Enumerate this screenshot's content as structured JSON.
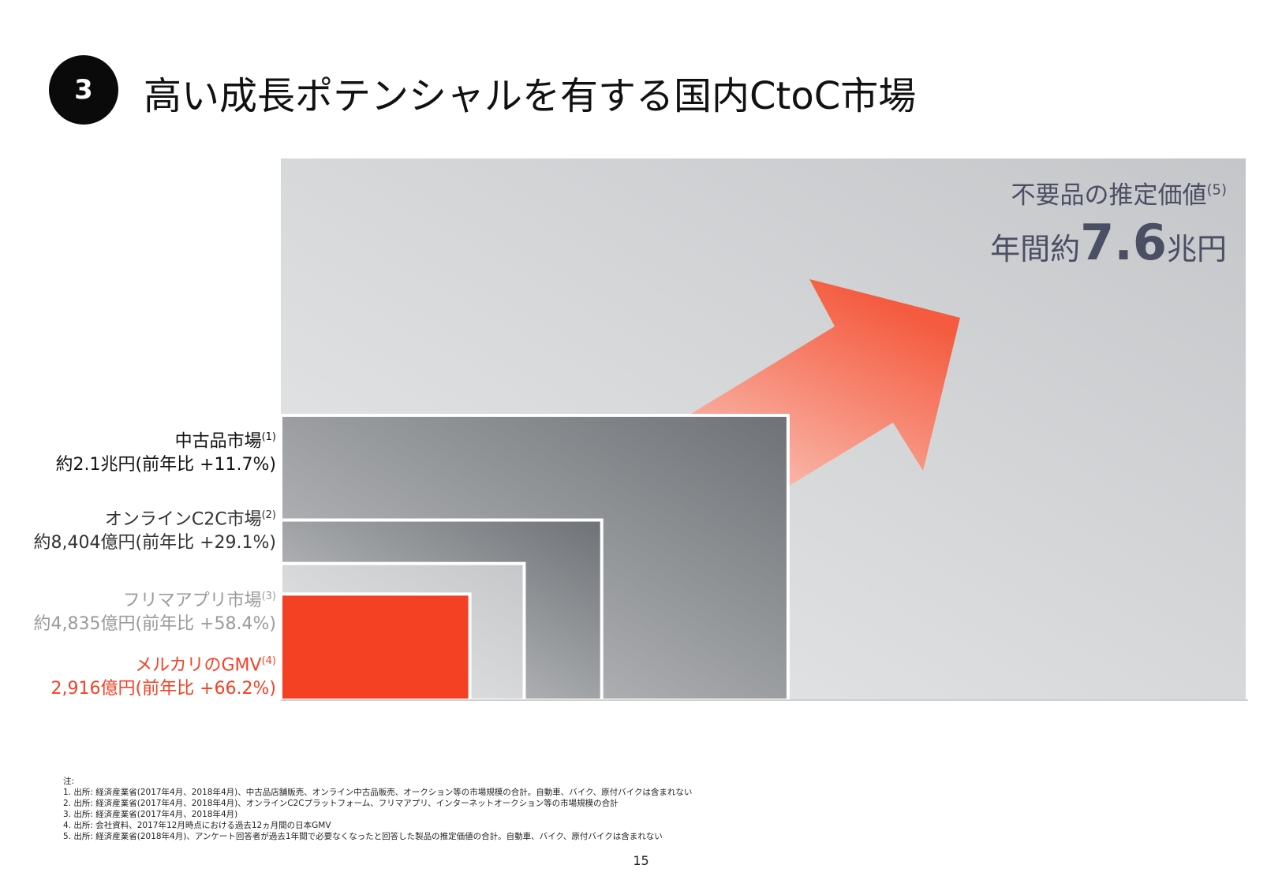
{
  "header": {
    "section_number": "3",
    "title": "高い成長ポテンシャルを有する国内CtoC市場"
  },
  "callout": {
    "label": "不要品の推定価値",
    "label_note": "(5)",
    "value_prefix": "年間約",
    "value_number": "7.6",
    "value_unit": "兆円"
  },
  "colors": {
    "accent_red": "#f44124",
    "label_gray": "#9a9a9a",
    "callout_text": "#4b4f63",
    "background_box": "#cfd1d4"
  },
  "chart_data": {
    "type": "nested-area",
    "unit": "円",
    "series": [
      {
        "name": "不要品の推定価値",
        "value_oku_yen": 76000,
        "text": "年間約7.6兆円"
      },
      {
        "name": "中古品市場",
        "note": "(1)",
        "value_oku_yen": 21000,
        "growth_pct": 11.7,
        "line1": "中古品市場",
        "line2": "約2.1兆円(前年比 +11.7%)",
        "color": "#111111"
      },
      {
        "name": "オンラインC2C市場",
        "note": "(2)",
        "value_oku_yen": 8404,
        "growth_pct": 29.1,
        "line1": "オンラインC2C市場",
        "line2": "約8,404億円(前年比 +29.1%)",
        "color": "#333333"
      },
      {
        "name": "フリマアプリ市場",
        "note": "(3)",
        "value_oku_yen": 4835,
        "growth_pct": 58.4,
        "line1": "フリマアプリ市場",
        "line2": "約4,835億円(前年比 +58.4%)",
        "color": "#9a9a9a"
      },
      {
        "name": "メルカリのGMV",
        "note": "(4)",
        "value_oku_yen": 2916,
        "growth_pct": 66.2,
        "line1": "メルカリのGMV",
        "line2": "2,916億円(前年比 +66.2%)",
        "color": "#f44124"
      }
    ]
  },
  "footnotes": {
    "heading": "注:",
    "items": [
      "1. 出所: 経済産業省(2017年4月、2018年4月)、中古品店舗販売、オンライン中古品販売、オークション等の市場規模の合計。自動車、バイク、原付バイクは含まれない",
      "2. 出所: 経済産業省(2017年4月、2018年4月)、オンラインC2Cプラットフォーム、フリマアプリ、インターネットオークション等の市場規模の合計",
      "3. 出所: 経済産業省(2017年4月、2018年4月)",
      "4. 出所: 会社資料、2017年12月時点における過去12ヵ月間の日本GMV",
      "5. 出所: 経済産業省(2018年4月)、アンケート回答者が過去1年間で必要なくなったと回答した製品の推定価値の合計。自動車、バイク、原付バイクは含まれない"
    ]
  },
  "page_number": "15"
}
